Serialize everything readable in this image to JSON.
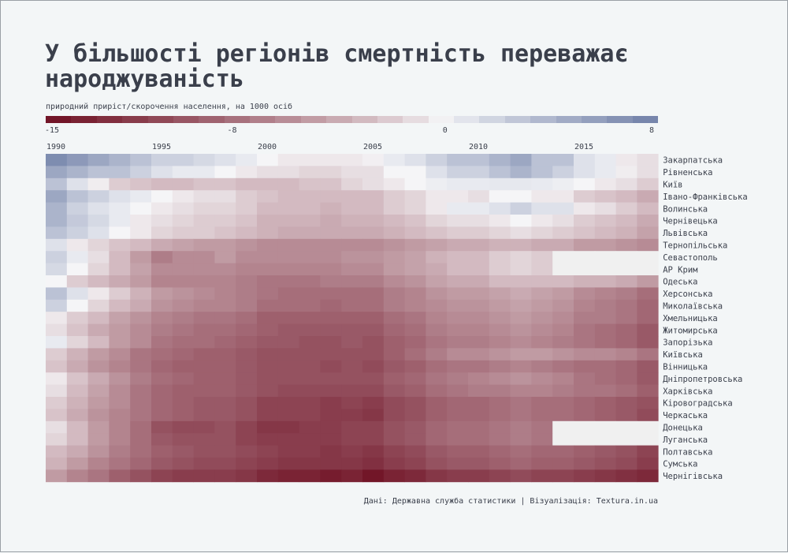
{
  "title": "У більшості регіонів смертність переважає народжуваність",
  "subtitle": "природний приріст/скорочення населення, на 1000 осіб",
  "source": "Дані: Державна служба статистики | Візуалізація: Textura.in.ua",
  "legend": {
    "ticks": [
      {
        "label": "-15",
        "value": -15
      },
      {
        "label": "-8",
        "value": -8
      },
      {
        "label": "0",
        "value": 0
      },
      {
        "label": "8",
        "value": 8
      }
    ]
  },
  "colors": {
    "negative_max": "#6e0f22",
    "neutral": "#f5f5f7",
    "positive_max": "#7080a8",
    "missing": "#f0f0f0"
  },
  "chart_data": {
    "type": "heatmap",
    "title": "У більшості регіонів смертність переважає народжуваність",
    "subtitle": "природний приріст/скорочення населення, на 1000 осіб",
    "x": [
      1990,
      1991,
      1992,
      1993,
      1994,
      1995,
      1996,
      1997,
      1998,
      1999,
      2000,
      2001,
      2002,
      2003,
      2004,
      2005,
      2006,
      2007,
      2008,
      2009,
      2010,
      2011,
      2012,
      2013,
      2014,
      2015,
      2016,
      2017,
      2018
    ],
    "x_tick_labels": [
      "1990",
      "1995",
      "2000",
      "2005",
      "2010",
      "2015"
    ],
    "color_range": [
      -15,
      8
    ],
    "rows": [
      {
        "region": "Закарпатська",
        "values": [
          7,
          6,
          5,
          4,
          3,
          2,
          2,
          1.5,
          1,
          0.5,
          0,
          -0.5,
          -0.5,
          -0.5,
          -0.5,
          -0.2,
          0.5,
          1,
          2,
          3,
          3,
          4,
          5,
          3,
          3,
          1,
          0.5,
          -0.5,
          -1
        ]
      },
      {
        "region": "Рівненська",
        "values": [
          5,
          4,
          3,
          3,
          2,
          1,
          0.5,
          0.5,
          0,
          -0.5,
          -1,
          -1,
          -1.5,
          -1.5,
          -1,
          -1,
          0,
          0,
          1,
          2,
          2,
          3,
          4,
          3,
          2,
          1,
          0.5,
          -0.3,
          -1
        ]
      },
      {
        "region": "Київ",
        "values": [
          3,
          1,
          -0.3,
          -2,
          -2.5,
          -3,
          -3,
          -2.5,
          -2.5,
          -3,
          -3,
          -3,
          -2.5,
          -2.5,
          -1.5,
          -1,
          -0.5,
          0,
          0.3,
          0.5,
          0.5,
          0.6,
          0.6,
          0.5,
          0.3,
          0,
          -0.5,
          -1,
          -2
        ]
      },
      {
        "region": "Івано-Франківська",
        "values": [
          5,
          3,
          2,
          1,
          0.5,
          0,
          -0.5,
          -1,
          -1,
          -2,
          -2.5,
          -3,
          -3,
          -3,
          -3,
          -3,
          -2,
          -1.5,
          -0.5,
          -0.5,
          -1,
          0,
          0,
          -0.5,
          -0.5,
          -2,
          -2.5,
          -3,
          -4
        ]
      },
      {
        "region": "Волинська",
        "values": [
          4,
          2,
          1,
          0.5,
          0,
          -0.5,
          -1,
          -1.5,
          -1.5,
          -2,
          -3,
          -3,
          -3,
          -3.5,
          -3,
          -3,
          -2,
          -1.5,
          -0.5,
          0.5,
          0.5,
          1,
          2,
          1,
          1,
          -0.5,
          -1,
          -2,
          -3
        ]
      },
      {
        "region": "Чернівецька",
        "values": [
          4,
          2.5,
          1.5,
          0.5,
          -0.5,
          -1,
          -1.5,
          -2,
          -2,
          -2.5,
          -3.5,
          -3.5,
          -3.5,
          -4,
          -3.5,
          -3.5,
          -3,
          -2.5,
          -1.5,
          -1,
          -1,
          -0.5,
          0,
          -0.5,
          -1,
          -2,
          -2.5,
          -3,
          -4
        ]
      },
      {
        "region": "Львівська",
        "values": [
          3,
          2,
          1,
          0,
          -0.5,
          -1.5,
          -2,
          -2,
          -2.5,
          -3,
          -3.5,
          -4,
          -4,
          -4,
          -4,
          -4,
          -3.5,
          -3,
          -2.5,
          -2,
          -2,
          -1.5,
          -1,
          -1.5,
          -2,
          -2.5,
          -3,
          -3.5,
          -4.5
        ]
      },
      {
        "region": "Тернопільська",
        "values": [
          1,
          -0.5,
          -1.5,
          -2.5,
          -3,
          -4,
          -4.5,
          -5,
          -5,
          -5.5,
          -6,
          -6,
          -6,
          -6,
          -6,
          -6,
          -5.5,
          -5,
          -4.5,
          -4,
          -4,
          -3.5,
          -3.5,
          -4,
          -4,
          -5,
          -5,
          -5.5,
          -6
        ]
      },
      {
        "region": "Севастополь",
        "values": [
          2,
          0.5,
          -1,
          -3,
          -5,
          -7,
          -6,
          -6,
          -5,
          -6,
          -6,
          -6,
          -6,
          -6,
          -5.5,
          -5.5,
          -5,
          -4.5,
          -3.5,
          -3,
          -3,
          -2,
          -1.5,
          -2,
          null,
          null,
          null,
          null,
          null
        ]
      },
      {
        "region": "АР Крим",
        "values": [
          1.5,
          0,
          -1.5,
          -3,
          -4.5,
          -6,
          -6,
          -6,
          -6,
          -6.5,
          -6.5,
          -6.5,
          -6.5,
          -6.5,
          -6,
          -6,
          -5,
          -4.5,
          -4,
          -3,
          -3,
          -2,
          -1.5,
          -2,
          null,
          null,
          null,
          null,
          null
        ]
      },
      {
        "region": "Одеська",
        "values": [
          0,
          -2,
          -3,
          -4,
          -5,
          -6.5,
          -6.5,
          -6.5,
          -6.5,
          -7,
          -7.5,
          -7.5,
          -7.5,
          -7,
          -7,
          -7,
          -6,
          -5.5,
          -4.5,
          -4,
          -4,
          -3,
          -3,
          -3,
          -3,
          -3.5,
          -3.5,
          -4,
          -5
        ]
      },
      {
        "region": "Херсонська",
        "values": [
          3,
          1,
          -0.5,
          -2,
          -3.5,
          -5,
          -5.5,
          -6,
          -6.5,
          -7,
          -7.5,
          -8,
          -8,
          -8,
          -8,
          -8,
          -7,
          -6.5,
          -5.5,
          -5,
          -5,
          -4.5,
          -4,
          -4.5,
          -5,
          -6,
          -6.5,
          -7,
          -8
        ]
      },
      {
        "region": "Миколаївська",
        "values": [
          2,
          0,
          -1.5,
          -3,
          -4,
          -5.5,
          -6,
          -6.5,
          -6.5,
          -7,
          -8,
          -8,
          -8,
          -8.5,
          -8,
          -8,
          -7,
          -6.5,
          -6,
          -5.5,
          -5.5,
          -5,
          -4.5,
          -5,
          -5.5,
          -6.5,
          -7,
          -7.5,
          -8.5
        ]
      },
      {
        "region": "Хмельницька",
        "values": [
          -0.5,
          -2,
          -3,
          -4.5,
          -5.5,
          -6.5,
          -7,
          -7.5,
          -7.5,
          -8,
          -9,
          -9,
          -9,
          -9,
          -9,
          -9,
          -8,
          -7.5,
          -6.5,
          -6,
          -6,
          -5.5,
          -5,
          -5.5,
          -6,
          -7,
          -7,
          -7.5,
          -8.5
        ]
      },
      {
        "region": "Житомирська",
        "values": [
          -1,
          -2.5,
          -4,
          -5,
          -6,
          -7,
          -7.5,
          -8,
          -8,
          -8.5,
          -9,
          -9.5,
          -9.5,
          -9.5,
          -9.5,
          -9.5,
          -8.5,
          -8,
          -7,
          -6.5,
          -6.5,
          -6,
          -5.5,
          -6,
          -6.5,
          -7.5,
          -8,
          -8.5,
          -9.5
        ]
      },
      {
        "region": "Запорізька",
        "values": [
          0.5,
          -1.5,
          -3,
          -5,
          -6,
          -7.5,
          -8,
          -8,
          -8.5,
          -9,
          -9.5,
          -9.5,
          -10,
          -10,
          -9.5,
          -10,
          -9,
          -8.5,
          -7.5,
          -7,
          -7,
          -6.5,
          -6,
          -6.5,
          -7,
          -7.5,
          -8,
          -8.5,
          -9.5
        ]
      },
      {
        "region": "Київська",
        "values": [
          -2,
          -3.5,
          -5,
          -6,
          -7.5,
          -8,
          -8.5,
          -9,
          -9,
          -9.5,
          -10,
          -10,
          -10,
          -10,
          -10,
          -10,
          -9,
          -8,
          -7,
          -6,
          -6,
          -5.5,
          -5,
          -5,
          -5.5,
          -6,
          -6,
          -6.5,
          -7.5
        ]
      },
      {
        "region": "Вінницька",
        "values": [
          -2.5,
          -4,
          -5.5,
          -6.5,
          -7.5,
          -8.5,
          -9,
          -9,
          -9,
          -9.5,
          -10,
          -10,
          -10,
          -10.5,
          -10,
          -10.5,
          -9.5,
          -9,
          -8,
          -7.5,
          -7.5,
          -7,
          -6.5,
          -7,
          -7.5,
          -8,
          -8,
          -8.5,
          -9.5
        ]
      },
      {
        "region": "Дніпропетровська",
        "values": [
          -0.5,
          -2.5,
          -4,
          -5.5,
          -7,
          -8,
          -8.5,
          -9,
          -9,
          -9.5,
          -10,
          -10,
          -10,
          -10,
          -10,
          -10,
          -9,
          -8.5,
          -7.5,
          -7,
          -6.5,
          -6,
          -5.5,
          -6,
          -6.5,
          -7.5,
          -8,
          -8.5,
          -9.5
        ]
      },
      {
        "region": "Харківська",
        "values": [
          -1,
          -3,
          -4.5,
          -6,
          -7.5,
          -8.5,
          -9,
          -9,
          -9,
          -9.5,
          -10,
          -10.5,
          -10.5,
          -10.5,
          -10.5,
          -10.5,
          -9.5,
          -9,
          -8,
          -7.5,
          -7,
          -7,
          -6.5,
          -6.5,
          -7,
          -7.5,
          -7.5,
          -8,
          -9
        ]
      },
      {
        "region": "Кіровоградська",
        "values": [
          -2,
          -3.5,
          -5,
          -6,
          -7.5,
          -8.5,
          -9,
          -9.5,
          -9.5,
          -10,
          -11,
          -11,
          -11,
          -11.5,
          -11,
          -11.5,
          -10.5,
          -10,
          -9,
          -8.5,
          -8.5,
          -8,
          -7.5,
          -8,
          -8,
          -8.5,
          -9,
          -9.5,
          -10
        ]
      },
      {
        "region": "Черкаська",
        "values": [
          -2.5,
          -4,
          -5.5,
          -6.5,
          -7.5,
          -8.5,
          -9,
          -9.5,
          -9.5,
          -10,
          -11,
          -11,
          -11,
          -11.5,
          -11.5,
          -12,
          -10.5,
          -10,
          -9,
          -8.5,
          -8.5,
          -8,
          -7.5,
          -8,
          -8,
          -8.5,
          -9,
          -9.5,
          -10.5
        ]
      },
      {
        "region": "Донецька",
        "values": [
          -1,
          -3,
          -5,
          -6.5,
          -8,
          -10,
          -10.5,
          -10.5,
          -10,
          -11,
          -12,
          -12,
          -11.5,
          -11.5,
          -11,
          -11,
          -10,
          -9.5,
          -8.5,
          -8,
          -8,
          -7.5,
          -7,
          -7.5,
          null,
          null,
          null,
          null,
          null
        ]
      },
      {
        "region": "Луганська",
        "values": [
          -1.5,
          -3,
          -5,
          -6.5,
          -8,
          -9.5,
          -10,
          -10,
          -10,
          -11,
          -11.5,
          -11.5,
          -11.5,
          -11.5,
          -11,
          -11,
          -10,
          -9.5,
          -8.5,
          -8,
          -8,
          -7.5,
          -7,
          -7.5,
          null,
          null,
          null,
          null,
          null
        ]
      },
      {
        "region": "Полтавська",
        "values": [
          -3,
          -4,
          -5.5,
          -7,
          -8,
          -9,
          -9.5,
          -10,
          -10,
          -10.5,
          -11,
          -11.5,
          -11.5,
          -12,
          -11.5,
          -12,
          -11,
          -10.5,
          -9.5,
          -9,
          -9,
          -8.5,
          -8,
          -8.5,
          -8.5,
          -9,
          -9.5,
          -10,
          -11
        ]
      },
      {
        "region": "Сумська",
        "values": [
          -3.5,
          -5,
          -6.5,
          -7.5,
          -8.5,
          -9.5,
          -10,
          -10.5,
          -10.5,
          -11,
          -11.5,
          -12,
          -12,
          -12,
          -12,
          -12.5,
          -11.5,
          -11,
          -10,
          -9.5,
          -9.5,
          -9,
          -8.5,
          -9,
          -9,
          -9.5,
          -10,
          -10.5,
          -11.5
        ]
      },
      {
        "region": "Чернігівська",
        "values": [
          -5,
          -6.5,
          -7.5,
          -9,
          -10,
          -11,
          -11.5,
          -11.5,
          -11.5,
          -12,
          -13,
          -13.5,
          -13.5,
          -14,
          -13.5,
          -14.5,
          -13.5,
          -13,
          -12,
          -11.5,
          -11.5,
          -11,
          -10.5,
          -11,
          -11,
          -11.5,
          -12,
          -12.5,
          -13
        ]
      }
    ]
  }
}
